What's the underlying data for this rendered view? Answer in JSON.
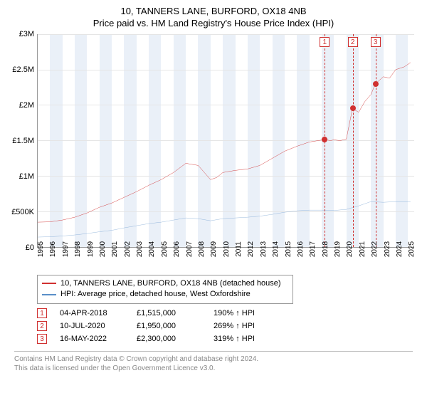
{
  "title": {
    "line1": "10, TANNERS LANE, BURFORD, OX18 4NB",
    "line2": "Price paid vs. HM Land Registry's House Price Index (HPI)"
  },
  "chart": {
    "type": "line",
    "background_color": "#ffffff",
    "grid_color": "#e5e5e5",
    "axis_color": "#999999",
    "band_color": "#eaf0f8",
    "ylim": [
      0,
      3000000
    ],
    "y_ticks": [
      {
        "v": 0,
        "label": "£0"
      },
      {
        "v": 500000,
        "label": "£500K"
      },
      {
        "v": 1000000,
        "label": "£1M"
      },
      {
        "v": 1500000,
        "label": "£1.5M"
      },
      {
        "v": 2000000,
        "label": "£2M"
      },
      {
        "v": 2500000,
        "label": "£2.5M"
      },
      {
        "v": 3000000,
        "label": "£3M"
      }
    ],
    "xlim": [
      1995,
      2025.5
    ],
    "x_ticks": [
      1995,
      1996,
      1997,
      1998,
      1999,
      2000,
      2001,
      2002,
      2003,
      2004,
      2005,
      2006,
      2007,
      2008,
      2009,
      2010,
      2011,
      2012,
      2013,
      2014,
      2015,
      2016,
      2017,
      2018,
      2019,
      2020,
      2021,
      2022,
      2023,
      2024,
      2025
    ],
    "x_bands_even": true,
    "series": [
      {
        "name": "price_paid",
        "label": "10, TANNERS LANE, BURFORD, OX18 4NB (detached house)",
        "color": "#d03030",
        "width": 1.5,
        "data": [
          [
            1995,
            350000
          ],
          [
            1996,
            355000
          ],
          [
            1997,
            380000
          ],
          [
            1998,
            420000
          ],
          [
            1999,
            480000
          ],
          [
            2000,
            560000
          ],
          [
            2001,
            620000
          ],
          [
            2002,
            700000
          ],
          [
            2003,
            780000
          ],
          [
            2004,
            870000
          ],
          [
            2005,
            950000
          ],
          [
            2006,
            1050000
          ],
          [
            2007,
            1180000
          ],
          [
            2008,
            1150000
          ],
          [
            2008.5,
            1050000
          ],
          [
            2009,
            950000
          ],
          [
            2009.5,
            980000
          ],
          [
            2010,
            1050000
          ],
          [
            2011,
            1080000
          ],
          [
            2012,
            1100000
          ],
          [
            2013,
            1150000
          ],
          [
            2014,
            1250000
          ],
          [
            2015,
            1350000
          ],
          [
            2016,
            1420000
          ],
          [
            2017,
            1480000
          ],
          [
            2018.25,
            1515000
          ],
          [
            2018.7,
            1500000
          ],
          [
            2019,
            1510000
          ],
          [
            2019.5,
            1500000
          ],
          [
            2020,
            1520000
          ],
          [
            2020.5,
            1950000
          ],
          [
            2021,
            1900000
          ],
          [
            2021.5,
            2050000
          ],
          [
            2022,
            2150000
          ],
          [
            2022.35,
            2300000
          ],
          [
            2023,
            2400000
          ],
          [
            2023.5,
            2380000
          ],
          [
            2024,
            2500000
          ],
          [
            2024.7,
            2540000
          ],
          [
            2025.2,
            2600000
          ]
        ]
      },
      {
        "name": "hpi",
        "label": "HPI: Average price, detached house, West Oxfordshire",
        "color": "#5a8fc8",
        "width": 1,
        "data": [
          [
            1995,
            140000
          ],
          [
            1996,
            145000
          ],
          [
            1997,
            155000
          ],
          [
            1998,
            170000
          ],
          [
            1999,
            190000
          ],
          [
            2000,
            215000
          ],
          [
            2001,
            235000
          ],
          [
            2002,
            270000
          ],
          [
            2003,
            300000
          ],
          [
            2004,
            330000
          ],
          [
            2005,
            350000
          ],
          [
            2006,
            380000
          ],
          [
            2007,
            410000
          ],
          [
            2008,
            400000
          ],
          [
            2009,
            370000
          ],
          [
            2010,
            400000
          ],
          [
            2011,
            410000
          ],
          [
            2012,
            420000
          ],
          [
            2013,
            435000
          ],
          [
            2014,
            460000
          ],
          [
            2015,
            490000
          ],
          [
            2016,
            510000
          ],
          [
            2017,
            520000
          ],
          [
            2018,
            520000
          ],
          [
            2019,
            515000
          ],
          [
            2020,
            530000
          ],
          [
            2021,
            580000
          ],
          [
            2022,
            640000
          ],
          [
            2023,
            630000
          ],
          [
            2024,
            640000
          ],
          [
            2025.2,
            640000
          ]
        ]
      }
    ],
    "markers": [
      {
        "n": "1",
        "x": 2018.25,
        "y": 1515000
      },
      {
        "n": "2",
        "x": 2020.52,
        "y": 1950000
      },
      {
        "n": "3",
        "x": 2022.37,
        "y": 2300000
      }
    ],
    "marker_line_color": "#d03030",
    "label_fontsize": 11
  },
  "legend": {
    "items": [
      {
        "color": "#d03030",
        "label": "10, TANNERS LANE, BURFORD, OX18 4NB (detached house)"
      },
      {
        "color": "#5a8fc8",
        "label": "HPI: Average price, detached house, West Oxfordshire"
      }
    ]
  },
  "transactions": [
    {
      "n": "1",
      "date": "04-APR-2018",
      "price": "£1,515,000",
      "pct": "190% ↑ HPI"
    },
    {
      "n": "2",
      "date": "10-JUL-2020",
      "price": "£1,950,000",
      "pct": "269% ↑ HPI"
    },
    {
      "n": "3",
      "date": "16-MAY-2022",
      "price": "£2,300,000",
      "pct": "319% ↑ HPI"
    }
  ],
  "footer": {
    "line1": "Contains HM Land Registry data © Crown copyright and database right 2024.",
    "line2": "This data is licensed under the Open Government Licence v3.0."
  }
}
